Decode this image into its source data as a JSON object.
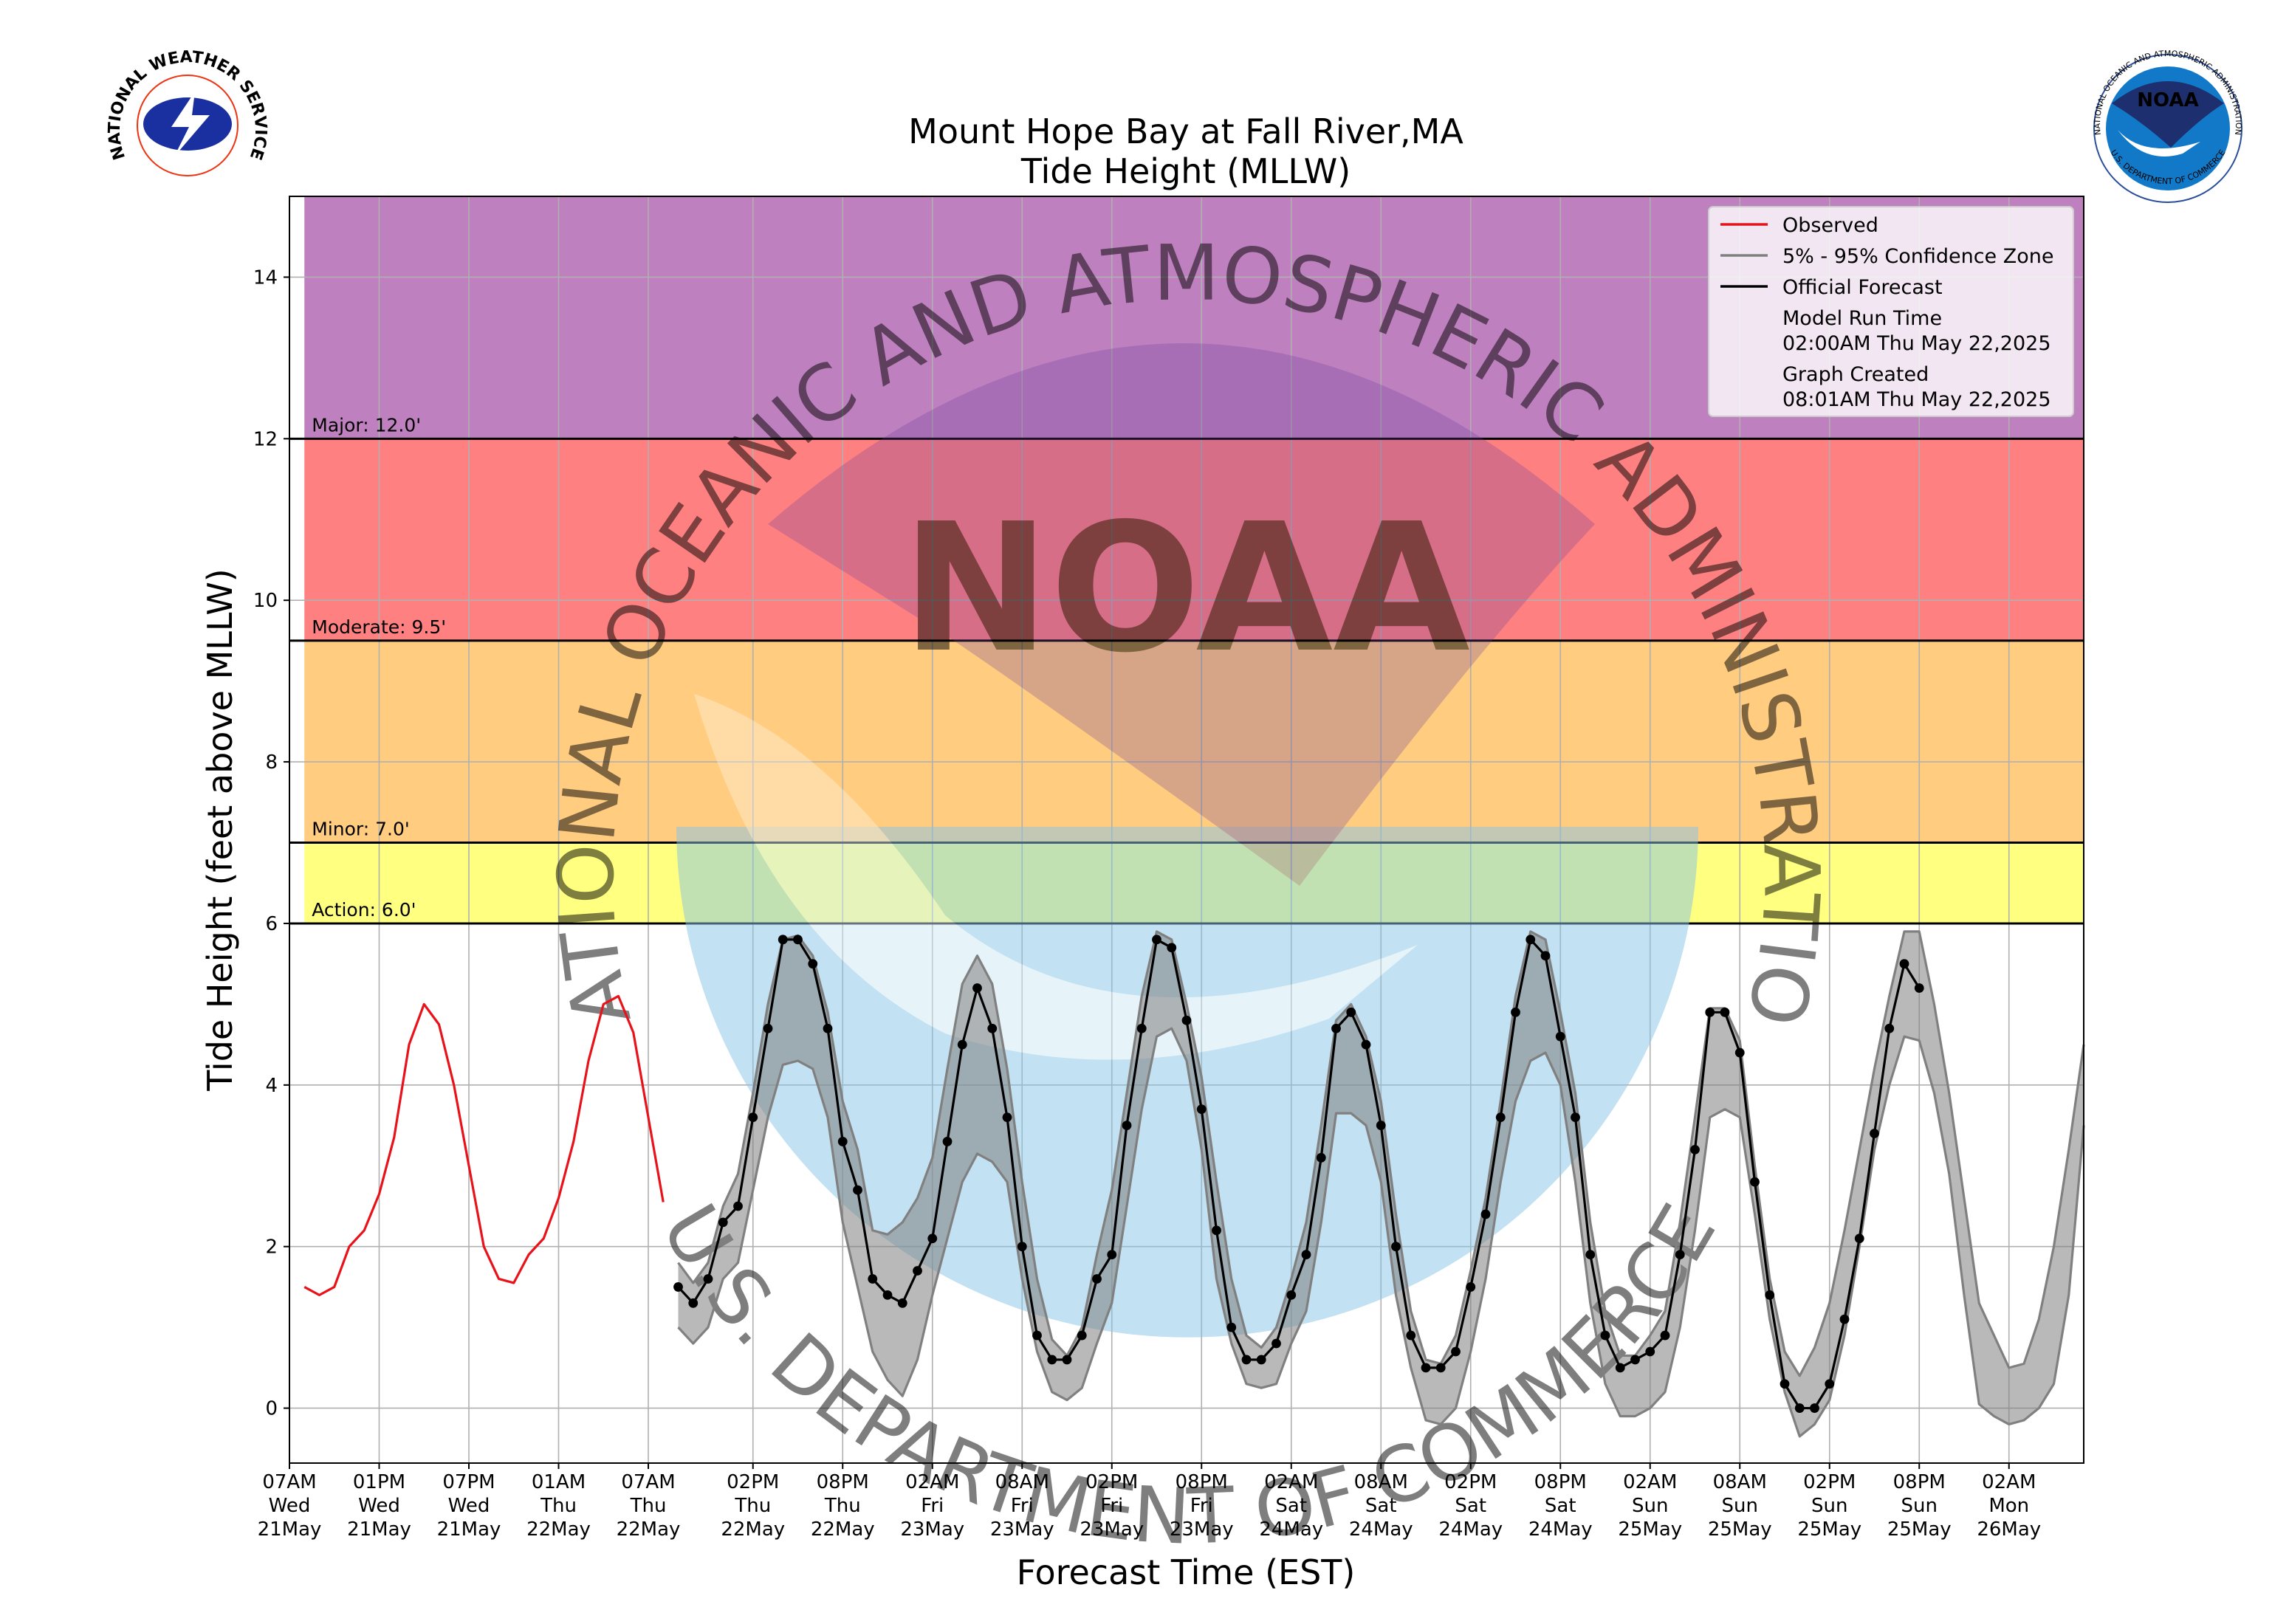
{
  "chart_data": {
    "type": "line",
    "title": [
      "Mount Hope Bay at Fall River,MA",
      "Tide Height (MLLW)"
    ],
    "xlabel": "Forecast Time (EST)",
    "ylabel": "Tide Height (feet above MLLW)",
    "xlim": [
      "2025-05-21T07:00",
      "2025-05-26T07:00"
    ],
    "ylim": [
      -0.68,
      15
    ],
    "yticks": [
      0,
      2,
      4,
      6,
      8,
      10,
      12,
      14
    ],
    "grid": true,
    "legend": "upper right",
    "xticks": [
      {
        "value": "2025-05-21T07:00",
        "label": [
          "07AM",
          "Wed",
          "21May"
        ]
      },
      {
        "value": "2025-05-21T13:00",
        "label": [
          "01PM",
          "Wed",
          "21May"
        ]
      },
      {
        "value": "2025-05-21T19:00",
        "label": [
          "07PM",
          "Wed",
          "21May"
        ]
      },
      {
        "value": "2025-05-22T01:00",
        "label": [
          "01AM",
          "Thu",
          "22May"
        ]
      },
      {
        "value": "2025-05-22T07:00",
        "label": [
          "07AM",
          "Thu",
          "22May"
        ]
      },
      {
        "value": "2025-05-22T14:00",
        "label": [
          "02PM",
          "Thu",
          "22May"
        ]
      },
      {
        "value": "2025-05-22T20:00",
        "label": [
          "08PM",
          "Thu",
          "22May"
        ]
      },
      {
        "value": "2025-05-23T02:00",
        "label": [
          "02AM",
          "Fri",
          "23May"
        ]
      },
      {
        "value": "2025-05-23T08:00",
        "label": [
          "08AM",
          "Fri",
          "23May"
        ]
      },
      {
        "value": "2025-05-23T14:00",
        "label": [
          "02PM",
          "Fri",
          "23May"
        ]
      },
      {
        "value": "2025-05-23T20:00",
        "label": [
          "08PM",
          "Fri",
          "23May"
        ]
      },
      {
        "value": "2025-05-24T02:00",
        "label": [
          "02AM",
          "Sat",
          "24May"
        ]
      },
      {
        "value": "2025-05-24T08:00",
        "label": [
          "08AM",
          "Sat",
          "24May"
        ]
      },
      {
        "value": "2025-05-24T14:00",
        "label": [
          "02PM",
          "Sat",
          "24May"
        ]
      },
      {
        "value": "2025-05-24T20:00",
        "label": [
          "08PM",
          "Sat",
          "24May"
        ]
      },
      {
        "value": "2025-05-25T02:00",
        "label": [
          "02AM",
          "Sun",
          "25May"
        ]
      },
      {
        "value": "2025-05-25T08:00",
        "label": [
          "08AM",
          "Sun",
          "25May"
        ]
      },
      {
        "value": "2025-05-25T14:00",
        "label": [
          "02PM",
          "Sun",
          "25May"
        ]
      },
      {
        "value": "2025-05-25T20:00",
        "label": [
          "08PM",
          "Sun",
          "25May"
        ]
      },
      {
        "value": "2025-05-26T02:00",
        "label": [
          "02AM",
          "Mon",
          "26May"
        ]
      }
    ],
    "thresholds": [
      {
        "value": 6,
        "label": "Action: 6.0'",
        "color": "#ffff80"
      },
      {
        "value": 7,
        "label": "Minor: 7.0'",
        "color": "#ffcc80"
      },
      {
        "value": 9.5,
        "label": "Moderate: 9.5'",
        "color": "#ff8080"
      },
      {
        "value": 12,
        "label": "Major: 12.0'",
        "color": "#bf80bf"
      }
    ],
    "x": [
      "2025-05-21T08:00",
      "2025-05-21T09:00",
      "2025-05-21T10:00",
      "2025-05-21T11:00",
      "2025-05-21T12:00",
      "2025-05-21T13:00",
      "2025-05-21T14:00",
      "2025-05-21T15:00",
      "2025-05-21T16:00",
      "2025-05-21T17:00",
      "2025-05-21T18:00",
      "2025-05-21T19:00",
      "2025-05-21T20:00",
      "2025-05-21T21:00",
      "2025-05-21T22:00",
      "2025-05-21T23:00",
      "2025-05-22T00:00",
      "2025-05-22T01:00",
      "2025-05-22T02:00",
      "2025-05-22T03:00",
      "2025-05-22T04:00",
      "2025-05-22T05:00",
      "2025-05-22T06:00",
      "2025-05-22T07:00",
      "2025-05-22T08:00",
      "2025-05-22T09:00",
      "2025-05-22T10:00",
      "2025-05-22T11:00",
      "2025-05-22T12:00",
      "2025-05-22T13:00",
      "2025-05-22T14:00",
      "2025-05-22T15:00",
      "2025-05-22T16:00",
      "2025-05-22T17:00",
      "2025-05-22T18:00",
      "2025-05-22T19:00",
      "2025-05-22T20:00",
      "2025-05-22T21:00",
      "2025-05-22T22:00",
      "2025-05-22T23:00",
      "2025-05-23T00:00",
      "2025-05-23T01:00",
      "2025-05-23T02:00",
      "2025-05-23T03:00",
      "2025-05-23T04:00",
      "2025-05-23T05:00",
      "2025-05-23T06:00",
      "2025-05-23T07:00",
      "2025-05-23T08:00",
      "2025-05-23T09:00",
      "2025-05-23T10:00",
      "2025-05-23T11:00",
      "2025-05-23T12:00",
      "2025-05-23T13:00",
      "2025-05-23T14:00",
      "2025-05-23T15:00",
      "2025-05-23T16:00",
      "2025-05-23T17:00",
      "2025-05-23T18:00",
      "2025-05-23T19:00",
      "2025-05-23T20:00",
      "2025-05-23T21:00",
      "2025-05-23T22:00",
      "2025-05-23T23:00",
      "2025-05-24T00:00",
      "2025-05-24T01:00",
      "2025-05-24T02:00",
      "2025-05-24T03:00",
      "2025-05-24T04:00",
      "2025-05-24T05:00",
      "2025-05-24T06:00",
      "2025-05-24T07:00",
      "2025-05-24T08:00",
      "2025-05-24T09:00",
      "2025-05-24T10:00",
      "2025-05-24T11:00",
      "2025-05-24T12:00",
      "2025-05-24T13:00",
      "2025-05-24T14:00",
      "2025-05-24T15:00",
      "2025-05-24T16:00",
      "2025-05-24T17:00",
      "2025-05-24T18:00",
      "2025-05-24T19:00",
      "2025-05-24T20:00",
      "2025-05-24T21:00",
      "2025-05-24T22:00",
      "2025-05-24T23:00",
      "2025-05-25T00:00",
      "2025-05-25T01:00",
      "2025-05-25T02:00",
      "2025-05-25T03:00",
      "2025-05-25T04:00",
      "2025-05-25T05:00",
      "2025-05-25T06:00",
      "2025-05-25T07:00",
      "2025-05-25T08:00",
      "2025-05-25T09:00",
      "2025-05-25T10:00",
      "2025-05-25T11:00",
      "2025-05-25T12:00",
      "2025-05-25T13:00",
      "2025-05-25T14:00",
      "2025-05-25T15:00",
      "2025-05-25T16:00",
      "2025-05-25T17:00",
      "2025-05-25T18:00",
      "2025-05-25T19:00",
      "2025-05-25T20:00",
      "2025-05-25T21:00",
      "2025-05-25T22:00",
      "2025-05-25T23:00",
      "2025-05-26T00:00",
      "2025-05-26T01:00",
      "2025-05-26T02:00",
      "2025-05-26T03:00",
      "2025-05-26T04:00",
      "2025-05-26T05:00",
      "2025-05-26T06:00",
      "2025-05-26T07:00"
    ],
    "series": [
      {
        "name": "Observed",
        "color": "#e8131a",
        "values": [
          1.5,
          1.4,
          1.5,
          2.0,
          2.2,
          2.65,
          3.35,
          4.5,
          5.0,
          4.75,
          4.0,
          3.0,
          2.0,
          1.6,
          1.55,
          1.9,
          2.1,
          2.6,
          3.3,
          4.3,
          5.0,
          5.1,
          4.65,
          3.6,
          2.55,
          null,
          null,
          null,
          null,
          null,
          null,
          null,
          null,
          null,
          null,
          null,
          null,
          null,
          null,
          null,
          null,
          null,
          null,
          null,
          null,
          null,
          null,
          null,
          null,
          null,
          null,
          null,
          null,
          null,
          null,
          null,
          null,
          null,
          null,
          null,
          null,
          null,
          null,
          null,
          null,
          null,
          null,
          null,
          null,
          null,
          null,
          null,
          null,
          null,
          null,
          null,
          null,
          null,
          null,
          null,
          null,
          null,
          null,
          null,
          null,
          null,
          null,
          null,
          null,
          null,
          null,
          null,
          null,
          null,
          null,
          null,
          null,
          null,
          null,
          null,
          null,
          null,
          null,
          null,
          null,
          null,
          null,
          null,
          null,
          null,
          null,
          null,
          null,
          null,
          null,
          null,
          null,
          null,
          null,
          null
        ]
      },
      {
        "name": "5% - 95% Confidence Zone",
        "color": "#808080",
        "lower": [
          null,
          null,
          null,
          null,
          null,
          null,
          null,
          null,
          null,
          null,
          null,
          null,
          null,
          null,
          null,
          null,
          null,
          null,
          null,
          null,
          null,
          null,
          null,
          null,
          null,
          1.0,
          0.8,
          1.0,
          1.6,
          1.8,
          2.7,
          3.6,
          4.25,
          4.3,
          4.2,
          3.6,
          2.3,
          1.5,
          0.7,
          0.35,
          0.15,
          0.6,
          1.4,
          2.1,
          2.8,
          3.15,
          3.05,
          2.8,
          1.6,
          0.7,
          0.2,
          0.1,
          0.25,
          0.8,
          1.3,
          2.5,
          3.7,
          4.6,
          4.7,
          4.3,
          3.2,
          1.6,
          0.8,
          0.3,
          0.25,
          0.3,
          0.8,
          1.2,
          2.3,
          3.65,
          3.65,
          3.5,
          2.8,
          1.4,
          0.5,
          -0.15,
          -0.2,
          0.0,
          0.7,
          1.6,
          2.8,
          3.8,
          4.3,
          4.4,
          4.0,
          2.8,
          1.3,
          0.3,
          -0.1,
          -0.1,
          0.0,
          0.2,
          1.0,
          2.2,
          3.6,
          3.7,
          3.6,
          2.4,
          1.1,
          0.2,
          -0.35,
          -0.2,
          0.1,
          0.9,
          2.0,
          3.2,
          4.0,
          4.6,
          4.55,
          3.9,
          2.9,
          1.4,
          0.05,
          -0.1,
          -0.2,
          -0.15,
          0.0,
          0.3,
          1.4,
          3.5
        ],
        "upper": [
          null,
          null,
          null,
          null,
          null,
          null,
          null,
          null,
          null,
          null,
          null,
          null,
          null,
          null,
          null,
          null,
          null,
          null,
          null,
          null,
          null,
          null,
          null,
          null,
          null,
          1.8,
          1.55,
          1.8,
          2.5,
          2.9,
          3.9,
          5.0,
          5.8,
          5.85,
          5.6,
          4.9,
          3.8,
          3.2,
          2.2,
          2.15,
          2.3,
          2.6,
          3.1,
          4.2,
          5.25,
          5.6,
          5.25,
          4.2,
          2.8,
          1.6,
          0.85,
          0.65,
          1.0,
          1.9,
          2.7,
          3.9,
          5.1,
          5.9,
          5.8,
          5.0,
          4.1,
          2.8,
          1.6,
          0.9,
          0.75,
          1.0,
          1.6,
          2.3,
          3.5,
          4.8,
          5.0,
          4.6,
          3.8,
          2.4,
          1.2,
          0.6,
          0.55,
          0.9,
          1.7,
          2.6,
          3.8,
          5.1,
          5.9,
          5.8,
          4.9,
          3.9,
          2.3,
          1.2,
          0.65,
          0.65,
          0.9,
          1.2,
          2.3,
          3.6,
          4.95,
          4.95,
          4.55,
          3.0,
          1.6,
          0.7,
          0.4,
          0.75,
          1.3,
          2.2,
          3.2,
          4.2,
          5.1,
          5.9,
          5.9,
          5.0,
          3.9,
          2.6,
          1.3,
          0.9,
          0.5,
          0.55,
          1.1,
          2.0,
          3.2,
          4.5
        ]
      },
      {
        "name": "Official Forecast",
        "color": "#000000",
        "markers": true,
        "values": [
          null,
          null,
          null,
          null,
          null,
          null,
          null,
          null,
          null,
          null,
          null,
          null,
          null,
          null,
          null,
          null,
          null,
          null,
          null,
          null,
          null,
          null,
          null,
          null,
          null,
          1.5,
          1.3,
          1.6,
          2.3,
          2.5,
          3.6,
          4.7,
          5.8,
          5.8,
          5.5,
          4.7,
          3.3,
          2.7,
          1.6,
          1.4,
          1.3,
          1.7,
          2.1,
          3.3,
          4.5,
          5.2,
          4.7,
          3.6,
          2.0,
          0.9,
          0.6,
          0.6,
          0.9,
          1.6,
          1.9,
          3.5,
          4.7,
          5.8,
          5.7,
          4.8,
          3.7,
          2.2,
          1.0,
          0.6,
          0.6,
          0.8,
          1.4,
          1.9,
          3.1,
          4.7,
          4.9,
          4.5,
          3.5,
          2.0,
          0.9,
          0.5,
          0.5,
          0.7,
          1.5,
          2.4,
          3.6,
          4.9,
          5.8,
          5.6,
          4.6,
          3.6,
          1.9,
          0.9,
          0.5,
          0.6,
          0.7,
          0.9,
          1.9,
          3.2,
          4.9,
          4.9,
          4.4,
          2.8,
          1.4,
          0.3,
          0.0,
          0.0,
          0.3,
          1.1,
          2.1,
          3.4,
          4.7,
          5.5,
          5.2,
          null,
          null,
          null,
          null,
          null,
          null,
          null,
          null,
          null,
          null,
          null
        ]
      }
    ],
    "legend_notes": [
      {
        "title": "Model Run Time",
        "text": "02:00AM Thu May 22,2025"
      },
      {
        "title": "Graph Created",
        "text": "08:01AM Thu May 22,2025"
      }
    ]
  },
  "watermark": {
    "acronym": "NOAA",
    "agency": "NATIONAL OCEANIC AND ATMOSPHERIC ADMINISTRATION",
    "department": "U.S. DEPARTMENT OF COMMERCE"
  },
  "logos": {
    "left": "NATIONAL WEATHER SERVICE",
    "right": "NOAA"
  }
}
